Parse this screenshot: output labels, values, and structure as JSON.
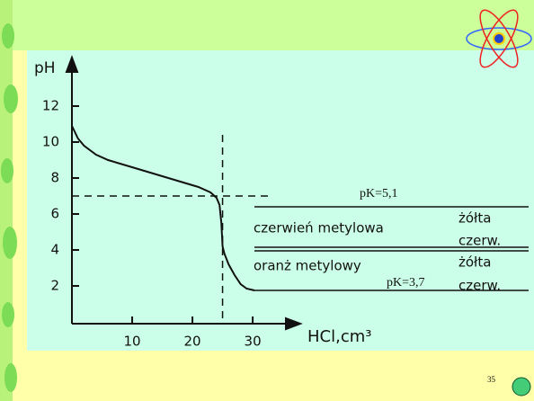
{
  "chart_data": {
    "type": "line",
    "y_label": "pH",
    "x_label": "HCl,cm³",
    "x": [
      0,
      1,
      2,
      4,
      6,
      10,
      14,
      18,
      21,
      23,
      24,
      24.5,
      24.8,
      25,
      25.3,
      26,
      27,
      28,
      29,
      30.3
    ],
    "series": [
      {
        "color": "#111111",
        "values": [
          10.9,
          10.2,
          9.8,
          9.3,
          9.0,
          8.6,
          8.2,
          7.8,
          7.5,
          7.2,
          6.9,
          6.5,
          5.5,
          4.2,
          3.8,
          3.2,
          2.6,
          2.1,
          1.85,
          1.75
        ]
      }
    ],
    "xlim": [
      0,
      37
    ],
    "ylim": [
      0,
      14.4
    ],
    "xticks": [
      10,
      20,
      30
    ],
    "yticks": [
      2,
      4,
      6,
      8,
      10,
      12
    ],
    "reference_lines": [
      {
        "axis": "y",
        "value": 7
      },
      {
        "axis": "x",
        "value": 25
      }
    ],
    "indicator_lines": [
      6.4,
      4.15,
      3.95,
      1.75
    ],
    "annotations": [
      "pK=5,1",
      "czerwień metylowa",
      "żółta",
      "czerw.",
      "oranż metylowy",
      "żółta",
      "pK=3,7",
      "czerw."
    ]
  },
  "page_number": "35"
}
